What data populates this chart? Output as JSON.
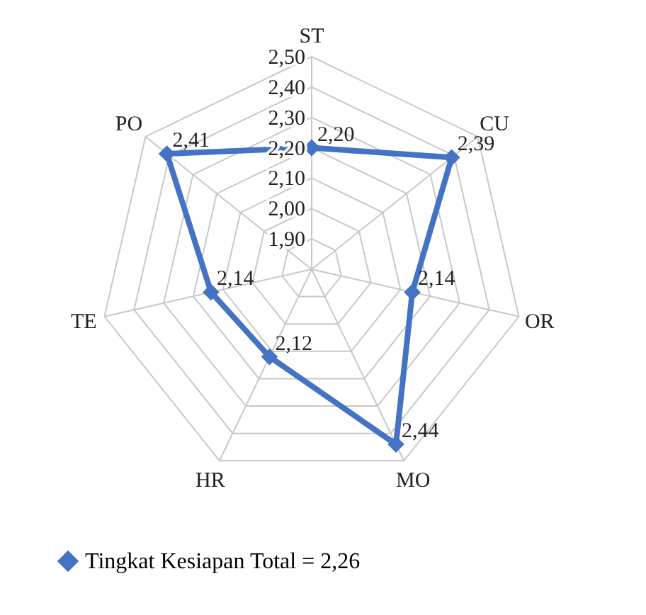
{
  "chart_data": {
    "type": "radar",
    "categories": [
      "ST",
      "CU",
      "OR",
      "MO",
      "HR",
      "TE",
      "PO"
    ],
    "series": [
      {
        "name": "Tingkat Kesiapan Total = 2,26",
        "color": "#4472c4",
        "values": [
          2.2,
          2.39,
          2.14,
          2.44,
          2.12,
          2.14,
          2.41
        ],
        "value_labels": [
          "2,20",
          "2,39",
          "2,14",
          "2,44",
          "2,12",
          "2,14",
          "2,41"
        ]
      }
    ],
    "ylim": [
      1.8,
      2.5
    ],
    "yticks": [
      {
        "value": 1.9,
        "label": "1,90"
      },
      {
        "value": 2.0,
        "label": "2,00"
      },
      {
        "value": 2.1,
        "label": "2,10"
      },
      {
        "value": 2.2,
        "label": "2,20"
      },
      {
        "value": 2.3,
        "label": "2,30"
      },
      {
        "value": 2.4,
        "label": "2,40"
      },
      {
        "value": 2.5,
        "label": "2,50"
      }
    ],
    "grid": true,
    "legend": "bottom",
    "marker": "diamond"
  }
}
